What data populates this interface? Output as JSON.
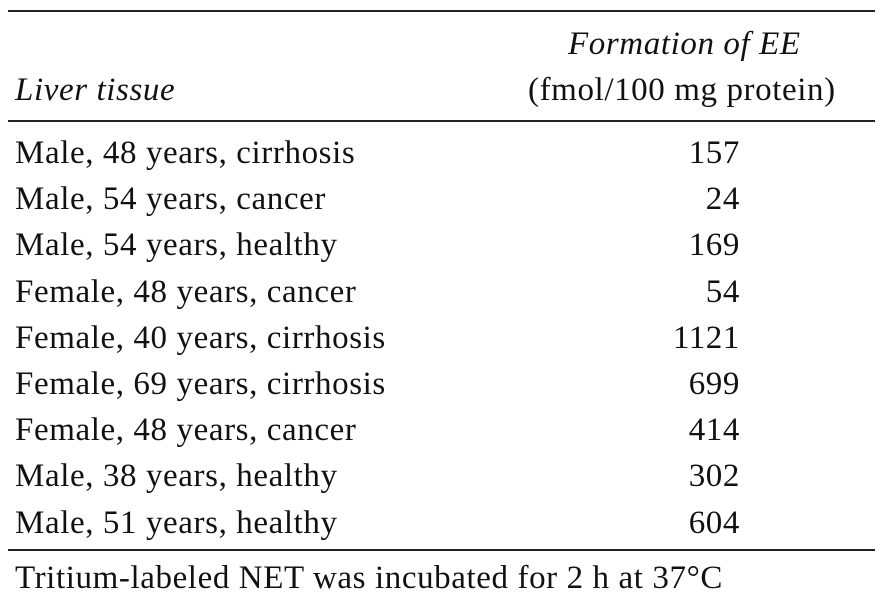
{
  "table": {
    "headers": {
      "col1": "Liver tissue",
      "col2_line1": "Formation of EE",
      "col2_line2": "(fmol/100 mg protein)"
    },
    "rows": [
      {
        "tissue": "Male, 48 years, cirrhosis",
        "value": "157"
      },
      {
        "tissue": "Male, 54 years, cancer",
        "value": "24"
      },
      {
        "tissue": "Male, 54 years, healthy",
        "value": "169"
      },
      {
        "tissue": "Female, 48 years, cancer",
        "value": "54"
      },
      {
        "tissue": "Female, 40 years, cirrhosis",
        "value": "1121"
      },
      {
        "tissue": "Female, 69 years, cirrhosis",
        "value": "699"
      },
      {
        "tissue": "Female, 48 years, cancer",
        "value": "414"
      },
      {
        "tissue": "Male, 38 years, healthy",
        "value": "302"
      },
      {
        "tissue": "Male, 51 years, healthy",
        "value": "604"
      }
    ]
  },
  "footnote": "Tritium-labeled NET was incubated for 2 h at 37°C"
}
